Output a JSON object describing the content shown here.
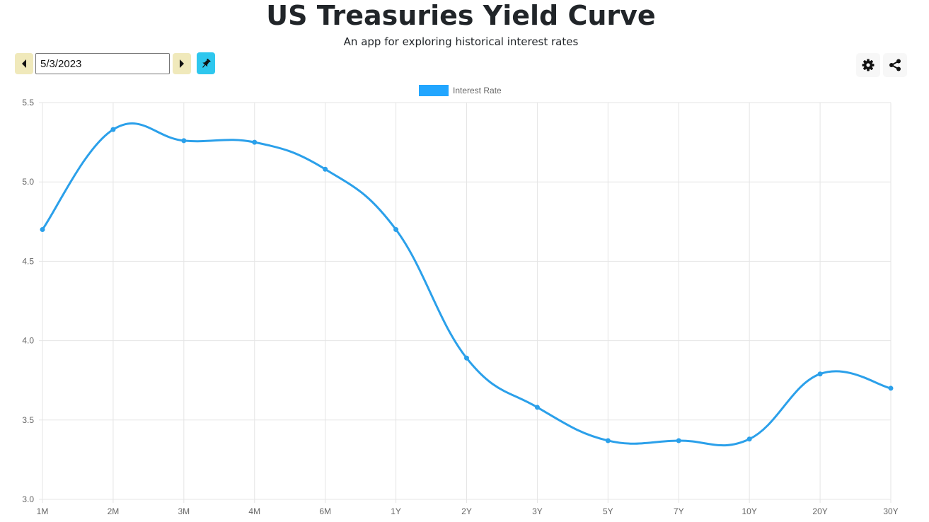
{
  "header": {
    "title": "US Treasuries Yield Curve",
    "subtitle": "An app for exploring historical interest rates"
  },
  "controls": {
    "date_value": "5/3/2023",
    "prev_icon": "caret-left-icon",
    "next_icon": "caret-right-icon",
    "pin_icon": "pin-icon",
    "settings_icon": "gear-icon",
    "share_icon": "share-icon"
  },
  "colors": {
    "series": "#2ba0ea",
    "legend_swatch": "#22a6ff",
    "nav_button": "#f0e9bb",
    "pin_button": "#2ec7ee",
    "grid": "#e5e5e5",
    "tick_text": "#666666"
  },
  "chart_data": {
    "type": "line",
    "title": "",
    "xlabel": "",
    "ylabel": "",
    "categories": [
      "1M",
      "2M",
      "3M",
      "4M",
      "6M",
      "1Y",
      "2Y",
      "3Y",
      "5Y",
      "7Y",
      "10Y",
      "20Y",
      "30Y"
    ],
    "series": [
      {
        "name": "Interest Rate",
        "values": [
          4.7,
          5.33,
          5.26,
          5.25,
          5.08,
          4.7,
          3.89,
          3.58,
          3.37,
          3.37,
          3.38,
          3.79,
          3.7
        ]
      }
    ],
    "ylim": [
      3.0,
      5.5
    ],
    "yticks": [
      "5.5",
      "5.0",
      "4.5",
      "4.0",
      "3.5",
      "3.0"
    ],
    "grid": true,
    "legend": "top-center",
    "smooth": true
  }
}
